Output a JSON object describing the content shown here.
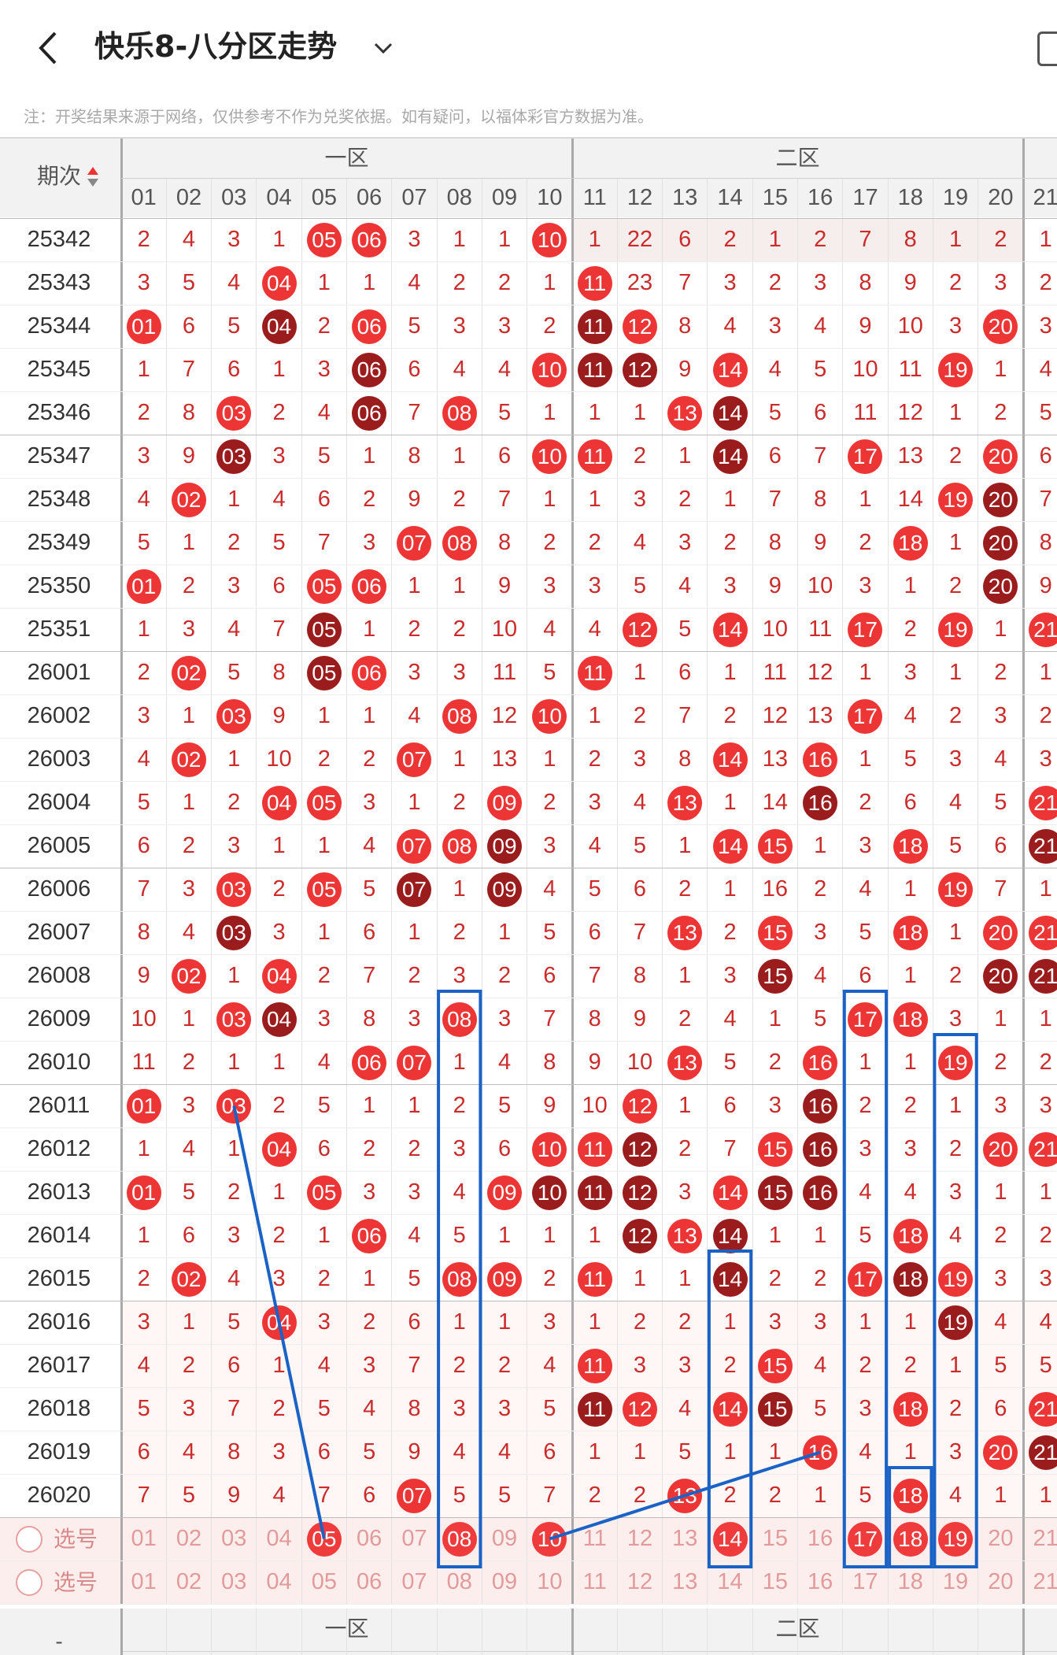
{
  "header": {
    "title": "快乐8-八分区走势",
    "back_icon": "chevron-left-icon",
    "dropdown_icon": "chevron-down-icon",
    "right_icon": "phone-icon"
  },
  "note": "注：开奖结果来源于网络，仅供参考不作为兑奖依据。如有疑问，以福体彩官方数据为准。",
  "table": {
    "period_header": "期次",
    "sort_icon": "sort-arrows-icon",
    "zones": [
      "一区",
      "二区"
    ],
    "columns": [
      "01",
      "02",
      "03",
      "04",
      "05",
      "06",
      "07",
      "08",
      "09",
      "10",
      "11",
      "12",
      "13",
      "14",
      "15",
      "16",
      "17",
      "18",
      "19",
      "20",
      "21"
    ],
    "rows": [
      {
        "period": "25342",
        "cells": [
          "2",
          "4",
          "3",
          "1",
          "05",
          "06",
          "3",
          "1",
          "1",
          "10",
          "1",
          "22",
          "6",
          "2",
          "1",
          "2",
          "7",
          "8",
          "1",
          "2",
          "1"
        ]
      },
      {
        "period": "25343",
        "cells": [
          "3",
          "5",
          "4",
          "04",
          "1",
          "1",
          "4",
          "2",
          "2",
          "1",
          "11",
          "23",
          "7",
          "3",
          "2",
          "3",
          "8",
          "9",
          "2",
          "3",
          "2"
        ]
      },
      {
        "period": "25344",
        "cells": [
          "01",
          "6",
          "5",
          "04",
          "2",
          "06",
          "5",
          "3",
          "3",
          "2",
          "11",
          "12",
          "8",
          "4",
          "3",
          "4",
          "9",
          "10",
          "3",
          "20",
          "3"
        ]
      },
      {
        "period": "25345",
        "cells": [
          "1",
          "7",
          "6",
          "1",
          "3",
          "06",
          "6",
          "4",
          "4",
          "10",
          "11",
          "12",
          "9",
          "14",
          "4",
          "5",
          "10",
          "11",
          "19",
          "1",
          "4"
        ]
      },
      {
        "period": "25346",
        "cells": [
          "2",
          "8",
          "03",
          "2",
          "4",
          "06",
          "7",
          "08",
          "5",
          "1",
          "1",
          "1",
          "13",
          "14",
          "5",
          "6",
          "11",
          "12",
          "1",
          "2",
          "5"
        ]
      },
      {
        "period": "25347",
        "cells": [
          "3",
          "9",
          "03",
          "3",
          "5",
          "1",
          "8",
          "1",
          "6",
          "10",
          "11",
          "2",
          "1",
          "14",
          "6",
          "7",
          "17",
          "13",
          "2",
          "20",
          "6"
        ]
      },
      {
        "period": "25348",
        "cells": [
          "4",
          "02",
          "1",
          "4",
          "6",
          "2",
          "9",
          "2",
          "7",
          "1",
          "1",
          "3",
          "2",
          "1",
          "7",
          "8",
          "1",
          "14",
          "19",
          "20",
          "7"
        ]
      },
      {
        "period": "25349",
        "cells": [
          "5",
          "1",
          "2",
          "5",
          "7",
          "3",
          "07",
          "08",
          "8",
          "2",
          "2",
          "4",
          "3",
          "2",
          "8",
          "9",
          "2",
          "18",
          "1",
          "20",
          "8"
        ]
      },
      {
        "period": "25350",
        "cells": [
          "01",
          "2",
          "3",
          "6",
          "05",
          "06",
          "1",
          "1",
          "9",
          "3",
          "3",
          "5",
          "4",
          "3",
          "9",
          "10",
          "3",
          "1",
          "2",
          "20",
          "9"
        ]
      },
      {
        "period": "25351",
        "cells": [
          "1",
          "3",
          "4",
          "7",
          "05",
          "1",
          "2",
          "2",
          "10",
          "4",
          "4",
          "12",
          "5",
          "14",
          "10",
          "11",
          "17",
          "2",
          "19",
          "1",
          "21"
        ]
      },
      {
        "period": "26001",
        "cells": [
          "2",
          "02",
          "5",
          "8",
          "05",
          "06",
          "3",
          "3",
          "11",
          "5",
          "11",
          "1",
          "6",
          "1",
          "11",
          "12",
          "1",
          "3",
          "1",
          "2",
          "1"
        ]
      },
      {
        "period": "26002",
        "cells": [
          "3",
          "1",
          "03",
          "9",
          "1",
          "1",
          "4",
          "08",
          "12",
          "10",
          "1",
          "2",
          "7",
          "2",
          "12",
          "13",
          "17",
          "4",
          "2",
          "3",
          "2"
        ]
      },
      {
        "period": "26003",
        "cells": [
          "4",
          "02",
          "1",
          "10",
          "2",
          "2",
          "07",
          "1",
          "13",
          "1",
          "2",
          "3",
          "8",
          "14",
          "13",
          "16",
          "1",
          "5",
          "3",
          "4",
          "3"
        ]
      },
      {
        "period": "26004",
        "cells": [
          "5",
          "1",
          "2",
          "04",
          "05",
          "3",
          "1",
          "2",
          "09",
          "2",
          "3",
          "4",
          "13",
          "1",
          "14",
          "16",
          "2",
          "6",
          "4",
          "5",
          "21"
        ]
      },
      {
        "period": "26005",
        "cells": [
          "6",
          "2",
          "3",
          "1",
          "1",
          "4",
          "07",
          "08",
          "09",
          "3",
          "4",
          "5",
          "1",
          "14",
          "15",
          "1",
          "3",
          "18",
          "5",
          "6",
          "21"
        ]
      },
      {
        "period": "26006",
        "cells": [
          "7",
          "3",
          "03",
          "2",
          "05",
          "5",
          "07",
          "1",
          "09",
          "4",
          "5",
          "6",
          "2",
          "1",
          "16",
          "2",
          "4",
          "1",
          "19",
          "7",
          "1"
        ]
      },
      {
        "period": "26007",
        "cells": [
          "8",
          "4",
          "03",
          "3",
          "1",
          "6",
          "1",
          "2",
          "1",
          "5",
          "6",
          "7",
          "13",
          "2",
          "15",
          "3",
          "5",
          "18",
          "1",
          "20",
          "21"
        ]
      },
      {
        "period": "26008",
        "cells": [
          "9",
          "02",
          "1",
          "04",
          "2",
          "7",
          "2",
          "3",
          "2",
          "6",
          "7",
          "8",
          "1",
          "3",
          "15",
          "4",
          "6",
          "1",
          "2",
          "20",
          "21"
        ]
      },
      {
        "period": "26009",
        "cells": [
          "10",
          "1",
          "03",
          "04",
          "3",
          "8",
          "3",
          "08",
          "3",
          "7",
          "8",
          "9",
          "2",
          "4",
          "1",
          "5",
          "17",
          "18",
          "3",
          "1",
          "1"
        ]
      },
      {
        "period": "26010",
        "cells": [
          "11",
          "2",
          "1",
          "1",
          "4",
          "06",
          "07",
          "1",
          "4",
          "8",
          "9",
          "10",
          "13",
          "5",
          "2",
          "16",
          "1",
          "1",
          "19",
          "2",
          "2"
        ]
      },
      {
        "period": "26011",
        "cells": [
          "01",
          "3",
          "03",
          "2",
          "5",
          "1",
          "1",
          "2",
          "5",
          "9",
          "10",
          "12",
          "1",
          "6",
          "3",
          "16",
          "2",
          "2",
          "1",
          "3",
          "3"
        ]
      },
      {
        "period": "26012",
        "cells": [
          "1",
          "4",
          "1",
          "04",
          "6",
          "2",
          "2",
          "3",
          "6",
          "10",
          "11",
          "12",
          "2",
          "7",
          "15",
          "16",
          "3",
          "3",
          "2",
          "20",
          "21"
        ]
      },
      {
        "period": "26013",
        "cells": [
          "01",
          "5",
          "2",
          "1",
          "05",
          "3",
          "3",
          "4",
          "09",
          "10",
          "11",
          "12",
          "3",
          "14",
          "15",
          "16",
          "4",
          "4",
          "3",
          "1",
          "1"
        ]
      },
      {
        "period": "26014",
        "cells": [
          "1",
          "6",
          "3",
          "2",
          "1",
          "06",
          "4",
          "5",
          "1",
          "1",
          "1",
          "12",
          "13",
          "14",
          "1",
          "1",
          "5",
          "18",
          "4",
          "2",
          "2"
        ]
      },
      {
        "period": "26015",
        "cells": [
          "2",
          "02",
          "4",
          "3",
          "2",
          "1",
          "5",
          "08",
          "09",
          "2",
          "11",
          "1",
          "1",
          "14",
          "2",
          "2",
          "17",
          "18",
          "19",
          "3",
          "3"
        ]
      },
      {
        "period": "26016",
        "cells": [
          "3",
          "1",
          "5",
          "04",
          "3",
          "2",
          "6",
          "1",
          "1",
          "3",
          "1",
          "2",
          "2",
          "1",
          "3",
          "3",
          "1",
          "1",
          "19",
          "4",
          "4"
        ]
      },
      {
        "period": "26017",
        "cells": [
          "4",
          "2",
          "6",
          "1",
          "4",
          "3",
          "7",
          "2",
          "2",
          "4",
          "11",
          "3",
          "3",
          "2",
          "15",
          "4",
          "2",
          "2",
          "1",
          "5",
          "5"
        ]
      },
      {
        "period": "26018",
        "cells": [
          "5",
          "3",
          "7",
          "2",
          "5",
          "4",
          "8",
          "3",
          "3",
          "5",
          "11",
          "12",
          "4",
          "14",
          "15",
          "5",
          "3",
          "18",
          "2",
          "6",
          "21"
        ]
      },
      {
        "period": "26019",
        "cells": [
          "6",
          "4",
          "8",
          "3",
          "6",
          "5",
          "9",
          "4",
          "4",
          "6",
          "1",
          "1",
          "5",
          "1",
          "1",
          "16",
          "4",
          "1",
          "3",
          "20",
          "21"
        ]
      },
      {
        "period": "26020",
        "cells": [
          "7",
          "5",
          "9",
          "4",
          "7",
          "6",
          "07",
          "5",
          "5",
          "7",
          "2",
          "2",
          "13",
          "2",
          "2",
          "1",
          "5",
          "18",
          "4",
          "1",
          "1"
        ]
      }
    ],
    "select_label": "选号",
    "select_rows": [
      {
        "selected": [
          "05",
          "08",
          "10",
          "14",
          "17",
          "18",
          "19"
        ]
      },
      {
        "selected": []
      }
    ],
    "footer_zones": [
      "一区",
      "二区"
    ],
    "footer_left": "-"
  },
  "colors": {
    "hit_red": "#ee3535",
    "repeat_dark": "#9b1c1c",
    "miss_text": "#cc2b2b",
    "annotation_blue": "#1a62c6",
    "header_bg": "#f2f2f2"
  }
}
